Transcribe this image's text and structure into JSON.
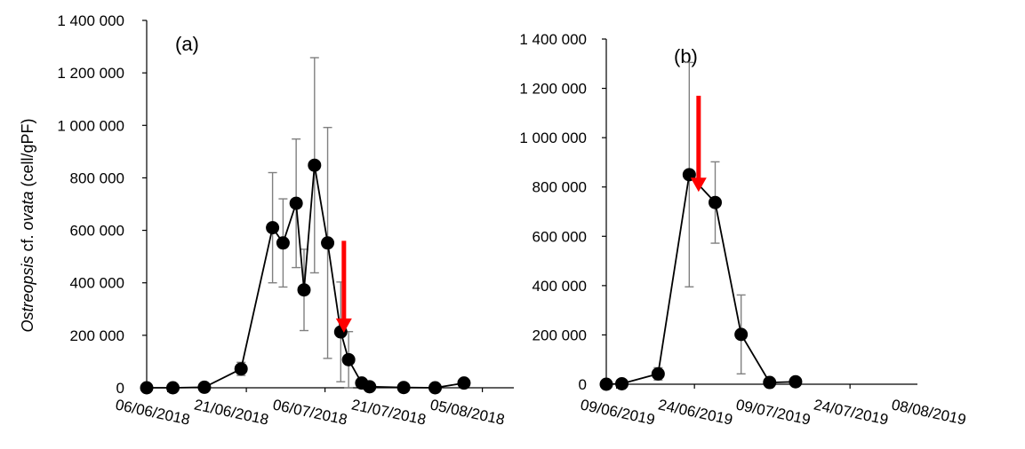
{
  "chart_data": [
    {
      "type": "scatter",
      "panel_label": "(a)",
      "ylabel": {
        "italic_1": "Ostreopsis",
        "normal_1": " cf. ",
        "italic_2": "ovata",
        "normal_2": " (cell/gPF)"
      },
      "ylim": [
        0,
        1400000
      ],
      "yticks": [
        "0",
        "200 000",
        "400 000",
        "600 000",
        "800 000",
        "1 000 000",
        "1 200 000",
        "1 400 000"
      ],
      "ytick_values": [
        0,
        200000,
        400000,
        600000,
        800000,
        1000000,
        1200000,
        1400000
      ],
      "xlim_days": [
        0,
        70
      ],
      "xticks": [
        "06/06/2018",
        "21/06/2018",
        "06/07/2018",
        "21/07/2018",
        "05/08/2018"
      ],
      "xtick_days": [
        4,
        19,
        34,
        49,
        64
      ],
      "series": [
        {
          "points": [
            {
              "x": 0,
              "y": 0,
              "err": 0
            },
            {
              "x": 5,
              "y": 0,
              "err": 0
            },
            {
              "x": 11,
              "y": 2000,
              "err": 0
            },
            {
              "x": 18,
              "y": 72000,
              "err": 25000
            },
            {
              "x": 24,
              "y": 610000,
              "err": 210000
            },
            {
              "x": 26,
              "y": 552000,
              "err": 168000
            },
            {
              "x": 28.5,
              "y": 703000,
              "err": 245000
            },
            {
              "x": 30,
              "y": 373000,
              "err": 155000
            },
            {
              "x": 32,
              "y": 848000,
              "err": 410000
            },
            {
              "x": 34.5,
              "y": 552000,
              "err": 440000
            },
            {
              "x": 37,
              "y": 213000,
              "err": 190000
            },
            {
              "x": 38.5,
              "y": 107000,
              "err": 107000
            },
            {
              "x": 41,
              "y": 18000,
              "err": 0
            },
            {
              "x": 42.5,
              "y": 4000,
              "err": 0
            },
            {
              "x": 49,
              "y": 1000,
              "err": 0
            },
            {
              "x": 55,
              "y": 0,
              "err": 0
            },
            {
              "x": 60.5,
              "y": 18000,
              "err": 0
            }
          ]
        }
      ],
      "arrow": {
        "x": 37.6,
        "y_top": 560000,
        "y_bottom": 210000,
        "color": "#ff0000"
      }
    },
    {
      "type": "scatter",
      "panel_label": "(b)",
      "ylim": [
        0,
        1400000
      ],
      "yticks": [
        "0",
        "200 000",
        "400 000",
        "600 000",
        "800 000",
        "1 000 000",
        "1 200 000",
        "1 400 000"
      ],
      "ytick_values": [
        0,
        200000,
        400000,
        600000,
        800000,
        1000000,
        1200000,
        1400000
      ],
      "xlim_days": [
        0,
        60
      ],
      "xticks": [
        "09/06/2019",
        "24/06/2019",
        "09/07/2019",
        "24/07/2019",
        "08/08/2019"
      ],
      "xtick_days": [
        2,
        17,
        32,
        47,
        62
      ],
      "series": [
        {
          "points": [
            {
              "x": 0,
              "y": 0,
              "err": 0
            },
            {
              "x": 3,
              "y": 2000,
              "err": 0
            },
            {
              "x": 10,
              "y": 42000,
              "err": 25000
            },
            {
              "x": 16,
              "y": 850000,
              "err": 455000
            },
            {
              "x": 21,
              "y": 737000,
              "err": 165000
            },
            {
              "x": 26,
              "y": 202000,
              "err": 160000
            },
            {
              "x": 31.5,
              "y": 7000,
              "err": 0
            },
            {
              "x": 36.5,
              "y": 10000,
              "err": 0
            }
          ]
        }
      ],
      "arrow": {
        "x": 17.8,
        "y_top": 1170000,
        "y_bottom": 780000,
        "color": "#ff0000"
      }
    }
  ]
}
